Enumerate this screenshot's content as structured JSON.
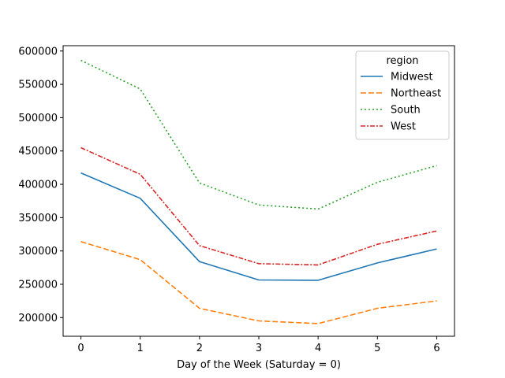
{
  "chart_data": {
    "type": "line",
    "title": "",
    "xlabel": "Day of the Week (Saturday = 0)",
    "ylabel": "",
    "x": [
      0,
      1,
      2,
      3,
      4,
      5,
      6
    ],
    "xlim": [
      -0.3,
      6.3
    ],
    "ylim": [
      172000,
      608000
    ],
    "yticks": [
      200000,
      250000,
      300000,
      350000,
      400000,
      450000,
      500000,
      550000,
      600000
    ],
    "grid": false,
    "legend": {
      "title": "region",
      "placement": "top-right"
    },
    "series": [
      {
        "name": "Midwest",
        "color": "#1f77b4",
        "dash": "solid",
        "values": [
          417000,
          379000,
          284000,
          256500,
          256000,
          282000,
          303000
        ]
      },
      {
        "name": "Northeast",
        "color": "#ff7f0e",
        "dash": "dashed",
        "values": [
          314000,
          287000,
          214000,
          195000,
          191000,
          214000,
          225000
        ]
      },
      {
        "name": "South",
        "color": "#2ca02c",
        "dash": "dotted",
        "values": [
          586000,
          543000,
          402000,
          369000,
          363000,
          403000,
          428000
        ]
      },
      {
        "name": "West",
        "color": "#d62728",
        "dash": "dashdot",
        "values": [
          455000,
          415000,
          308000,
          281000,
          279000,
          310000,
          330000
        ]
      }
    ]
  }
}
